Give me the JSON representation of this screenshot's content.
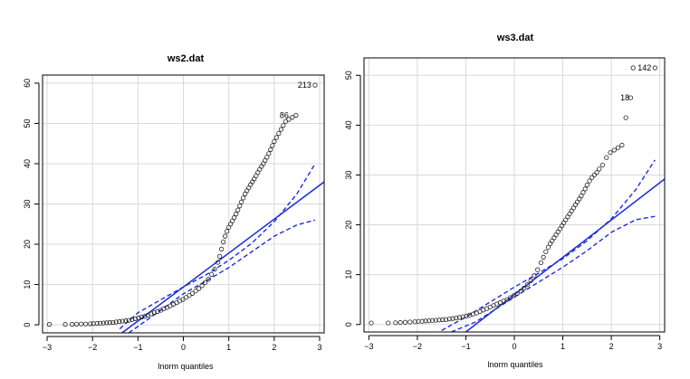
{
  "chart_data": [
    {
      "type": "scatter",
      "title": "ws2.dat",
      "xlabel": "lnorm quantiles",
      "ylabel": "",
      "xlim": [
        -3.1,
        3.1
      ],
      "ylim": [
        -2,
        62
      ],
      "xticks": [
        -3,
        -2,
        -1,
        0,
        1,
        2,
        3
      ],
      "yticks": [
        0,
        10,
        20,
        30,
        40,
        50,
        60
      ],
      "grid": true,
      "qqline": {
        "x": [
          -1.35,
          3.1
        ],
        "y": [
          -2,
          35.5
        ]
      },
      "envelope_upper": {
        "x": [
          -1.4,
          -1,
          0,
          0.5,
          1,
          1.5,
          2,
          2.5,
          2.9
        ],
        "y": [
          -1,
          3,
          9.4,
          12.4,
          16.0,
          20.2,
          25.6,
          32.5,
          40
        ]
      },
      "envelope_lower": {
        "x": [
          -1.2,
          -0.8,
          0,
          0.5,
          1,
          1.5,
          2,
          2.5,
          2.9
        ],
        "y": [
          -2,
          1.2,
          7.7,
          10.9,
          14.2,
          18.1,
          22.0,
          24.8,
          26
        ]
      },
      "points": {
        "x": [
          -2.95,
          -2.6,
          -2.45,
          -2.35,
          -2.25,
          -2.15,
          -2.05,
          -1.98,
          -1.9,
          -1.83,
          -1.76,
          -1.69,
          -1.62,
          -1.55,
          -1.48,
          -1.41,
          -1.34,
          -1.27,
          -1.2,
          -1.13,
          -1.06,
          -0.99,
          -0.92,
          -0.85,
          -0.78,
          -0.71,
          -0.64,
          -0.57,
          -0.5,
          -0.43,
          -0.36,
          -0.29,
          -0.22,
          -0.15,
          -0.08,
          -0.01,
          0.06,
          0.13,
          0.2,
          0.27,
          0.34,
          0.41,
          0.48,
          0.55,
          0.62,
          0.69,
          0.76,
          0.8,
          0.84,
          0.88,
          0.92,
          0.96,
          1.0,
          1.04,
          1.08,
          1.12,
          1.16,
          1.2,
          1.24,
          1.28,
          1.32,
          1.36,
          1.4,
          1.44,
          1.48,
          1.52,
          1.56,
          1.6,
          1.64,
          1.68,
          1.72,
          1.76,
          1.8,
          1.84,
          1.88,
          1.92,
          1.96,
          2.0,
          2.05,
          2.1,
          2.15,
          2.2,
          2.25,
          2.32,
          2.4,
          2.48,
          2.9
        ],
        "y": [
          0.1,
          0.1,
          0.1,
          0.15,
          0.2,
          0.2,
          0.25,
          0.3,
          0.35,
          0.4,
          0.45,
          0.5,
          0.55,
          0.6,
          0.7,
          0.8,
          0.9,
          1.0,
          1.1,
          1.3,
          1.5,
          1.7,
          1.9,
          2.1,
          2.4,
          2.7,
          3.0,
          3.3,
          3.6,
          4.0,
          4.3,
          4.7,
          5.1,
          5.5,
          5.9,
          6.3,
          6.8,
          7.3,
          7.8,
          8.4,
          9.0,
          9.7,
          10.5,
          11.3,
          12.5,
          13.8,
          15.5,
          17.0,
          18.8,
          20.6,
          22.0,
          23.2,
          24.2,
          25.0,
          25.8,
          26.6,
          27.5,
          28.5,
          29.5,
          30.5,
          31.5,
          32.5,
          33.3,
          34.0,
          34.8,
          35.5,
          36.2,
          37.0,
          37.8,
          38.6,
          39.3,
          40.0,
          40.8,
          41.6,
          42.5,
          43.5,
          44.5,
          45.5,
          46.5,
          47.5,
          48.5,
          49.5,
          50.5,
          51.0,
          51.5,
          52.0,
          59.5
        ]
      },
      "point_labels": [
        {
          "text": "213",
          "x": 2.9,
          "y": 59.5
        },
        {
          "text": "86",
          "x": 2.4,
          "y": 52.0
        }
      ]
    },
    {
      "type": "scatter",
      "title": "ws3.dat",
      "xlabel": "lnorm quantiles",
      "ylabel": "",
      "xlim": [
        -3.1,
        3.1
      ],
      "ylim": [
        -1.5,
        53.5
      ],
      "xticks": [
        -3,
        -2,
        -1,
        0,
        1,
        2,
        3
      ],
      "yticks": [
        0,
        10,
        20,
        30,
        40,
        50
      ],
      "grid": true,
      "qqline": {
        "x": [
          -1.0,
          3.1
        ],
        "y": [
          -1.5,
          29.2
        ]
      },
      "envelope_upper": {
        "x": [
          -1.5,
          -1,
          0,
          0.5,
          1,
          1.5,
          2,
          2.5,
          2.9
        ],
        "y": [
          -1.2,
          1.5,
          7.5,
          10.3,
          13.2,
          16.8,
          21.2,
          27,
          33
        ]
      },
      "envelope_lower": {
        "x": [
          -1.3,
          -0.8,
          0,
          0.5,
          1,
          1.5,
          2,
          2.5,
          2.9
        ],
        "y": [
          -1.5,
          0.5,
          5.5,
          8.5,
          11.5,
          14.8,
          18.5,
          21,
          21.7
        ]
      },
      "points": {
        "x": [
          -2.95,
          -2.6,
          -2.45,
          -2.35,
          -2.25,
          -2.15,
          -2.05,
          -1.98,
          -1.9,
          -1.83,
          -1.76,
          -1.69,
          -1.62,
          -1.55,
          -1.48,
          -1.41,
          -1.34,
          -1.27,
          -1.2,
          -1.13,
          -1.06,
          -0.99,
          -0.92,
          -0.85,
          -0.78,
          -0.71,
          -0.64,
          -0.57,
          -0.5,
          -0.43,
          -0.36,
          -0.29,
          -0.22,
          -0.15,
          -0.08,
          -0.01,
          0.06,
          0.13,
          0.2,
          0.27,
          0.34,
          0.41,
          0.48,
          0.55,
          0.6,
          0.65,
          0.7,
          0.74,
          0.78,
          0.82,
          0.86,
          0.9,
          0.94,
          0.98,
          1.02,
          1.06,
          1.1,
          1.14,
          1.18,
          1.22,
          1.26,
          1.3,
          1.34,
          1.38,
          1.42,
          1.46,
          1.5,
          1.55,
          1.6,
          1.65,
          1.7,
          1.75,
          1.82,
          1.9,
          1.98,
          2.06,
          2.14,
          2.22,
          2.3,
          2.4,
          2.45,
          2.9
        ],
        "y": [
          0.3,
          0.3,
          0.35,
          0.4,
          0.45,
          0.5,
          0.55,
          0.6,
          0.65,
          0.7,
          0.75,
          0.8,
          0.85,
          0.9,
          0.95,
          1.0,
          1.1,
          1.2,
          1.3,
          1.4,
          1.55,
          1.7,
          1.9,
          2.1,
          2.3,
          2.6,
          2.9,
          3.2,
          3.5,
          3.8,
          4.1,
          4.4,
          4.7,
          5.0,
          5.4,
          5.8,
          6.2,
          6.7,
          7.3,
          8.0,
          8.8,
          9.8,
          11.0,
          12.4,
          13.5,
          14.6,
          15.5,
          16.2,
          16.8,
          17.4,
          18.0,
          18.6,
          19.2,
          19.8,
          20.4,
          21.0,
          21.6,
          22.2,
          22.8,
          23.4,
          24.0,
          24.6,
          25.2,
          25.8,
          26.5,
          27.2,
          28.0,
          28.8,
          29.5,
          30.0,
          30.5,
          31.2,
          32.0,
          33.5,
          34.5,
          35.0,
          35.5,
          36.0,
          41.5,
          45.5,
          51.5,
          51.5
        ],
        "note": ""
      },
      "point_labels": [
        {
          "text": "142",
          "x": 2.9,
          "y": 51.5
        },
        {
          "text": "18",
          "x": 2.45,
          "y": 45.5
        }
      ]
    }
  ]
}
